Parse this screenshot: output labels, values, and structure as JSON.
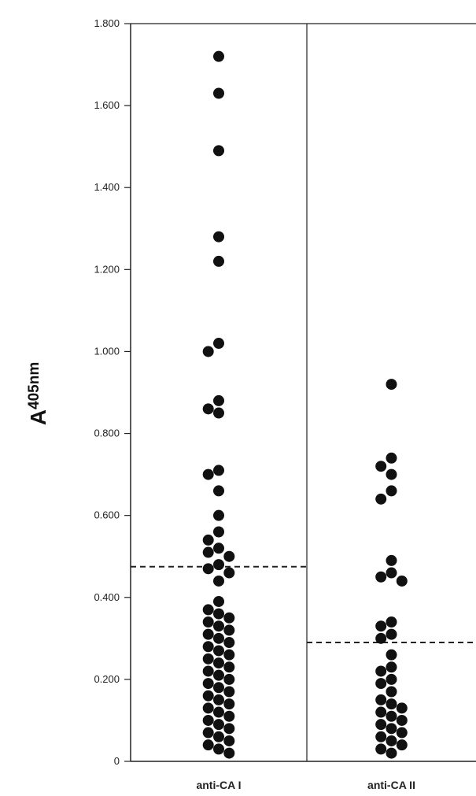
{
  "chart_data": {
    "type": "scatter",
    "ylabel": "A",
    "ylabel_sub": "405nm",
    "ylim": [
      0,
      1.8
    ],
    "y_ticks": [
      "0",
      "0.200",
      "0.400",
      "0.600",
      "0.800",
      "1.000",
      "1.200",
      "1.400",
      "1.600",
      "1.800"
    ],
    "y_tick_values": [
      0,
      0.2,
      0.4,
      0.6,
      0.8,
      1.0,
      1.2,
      1.4,
      1.6,
      1.8
    ],
    "categories": [
      "anti-CA I",
      "anti-CA II"
    ],
    "grid": false,
    "series": [
      {
        "category": "anti-CA I",
        "cutoff": 0.475,
        "values": [
          1.72,
          1.63,
          1.49,
          1.28,
          1.22,
          1.02,
          1.0,
          0.88,
          0.86,
          0.85,
          0.71,
          0.7,
          0.66,
          0.6,
          0.56,
          0.54,
          0.52,
          0.51,
          0.5,
          0.48,
          0.47,
          0.46,
          0.44,
          0.39,
          0.37,
          0.36,
          0.35,
          0.34,
          0.33,
          0.32,
          0.31,
          0.3,
          0.29,
          0.28,
          0.27,
          0.26,
          0.25,
          0.24,
          0.23,
          0.22,
          0.21,
          0.2,
          0.19,
          0.18,
          0.17,
          0.16,
          0.15,
          0.14,
          0.13,
          0.12,
          0.11,
          0.1,
          0.09,
          0.08,
          0.07,
          0.06,
          0.05,
          0.04,
          0.03,
          0.02
        ]
      },
      {
        "category": "anti-CA II",
        "cutoff": 0.29,
        "values": [
          0.92,
          0.74,
          0.72,
          0.7,
          0.66,
          0.64,
          0.49,
          0.46,
          0.45,
          0.44,
          0.34,
          0.33,
          0.31,
          0.3,
          0.26,
          0.23,
          0.22,
          0.2,
          0.19,
          0.17,
          0.15,
          0.14,
          0.13,
          0.12,
          0.11,
          0.1,
          0.09,
          0.08,
          0.07,
          0.06,
          0.05,
          0.04,
          0.03,
          0.02
        ]
      }
    ]
  },
  "colors": {
    "dot": "#111111",
    "axis": "#222222",
    "background": "#ffffff"
  }
}
